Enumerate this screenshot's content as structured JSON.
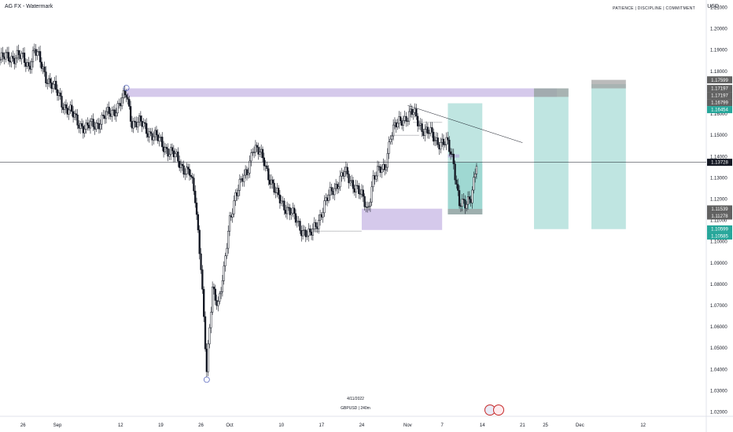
{
  "header": {
    "title": "AG FX - Watermark",
    "motto": "PATIENCE  |  DISCIPLINE  |  COMMITMENT",
    "currency": "USD"
  },
  "watermark": {
    "date": "4/11/2022",
    "symbol": "GBPUSD | 240m"
  },
  "colors": {
    "up": "#131722",
    "down": "#131722",
    "zone": "#b39ddb",
    "target": "#80cbc4",
    "grey": "#9e9e9e",
    "teal_label": "#26a69a",
    "price_line": "#131722"
  },
  "chart_data": {
    "type": "candlestick",
    "title": "",
    "xlabel": "",
    "ylabel": "",
    "ylim": [
      1.018,
      1.2135
    ],
    "y_ticks": [
      1.21,
      1.2,
      1.19,
      1.18,
      1.17,
      1.16,
      1.15,
      1.14,
      1.13,
      1.12,
      1.11,
      1.1,
      1.09,
      1.08,
      1.07,
      1.06,
      1.05,
      1.04,
      1.03,
      1.02
    ],
    "y_tick_labels": [
      "1.21000",
      "1.20000",
      "1.19000",
      "1.18000",
      "1.17000",
      "1.16000",
      "1.15000",
      "1.14000",
      "1.13000",
      "1.12000",
      "1.11000",
      "1.10000",
      "1.09000",
      "1.08000",
      "1.07000",
      "1.06000",
      "1.05000",
      "1.04000",
      "1.03000",
      "1.02000"
    ],
    "x_ticks": [
      "26",
      "Sep",
      "12",
      "19",
      "26",
      "Oct",
      "10",
      "17",
      "24",
      "Nov",
      "7",
      "14",
      "21",
      "25",
      "Dec",
      "12"
    ],
    "x_tick_days": [
      -6,
      0,
      11,
      18,
      25,
      30,
      39,
      46,
      53,
      61,
      67,
      74,
      81,
      85,
      91,
      102
    ],
    "x_range_days": [
      -10,
      113
    ],
    "price_keypoints": [
      {
        "d": -10,
        "p": 1.1855
      },
      {
        "d": -7,
        "p": 1.1875
      },
      {
        "d": -5,
        "p": 1.183
      },
      {
        "d": -4,
        "p": 1.19
      },
      {
        "d": -2,
        "p": 1.178
      },
      {
        "d": 1,
        "p": 1.165
      },
      {
        "d": 3,
        "p": 1.158
      },
      {
        "d": 5,
        "p": 1.153
      },
      {
        "d": 7,
        "p": 1.156
      },
      {
        "d": 9,
        "p": 1.16
      },
      {
        "d": 11,
        "p": 1.165
      },
      {
        "d": 12,
        "p": 1.169
      },
      {
        "d": 13,
        "p": 1.1565
      },
      {
        "d": 15,
        "p": 1.1545
      },
      {
        "d": 17,
        "p": 1.149
      },
      {
        "d": 19,
        "p": 1.144
      },
      {
        "d": 21,
        "p": 1.138
      },
      {
        "d": 23,
        "p": 1.132
      },
      {
        "d": 24,
        "p": 1.12
      },
      {
        "d": 25,
        "p": 1.09
      },
      {
        "d": 26,
        "p": 1.038
      },
      {
        "d": 27,
        "p": 1.078
      },
      {
        "d": 28,
        "p": 1.072
      },
      {
        "d": 29,
        "p": 1.085
      },
      {
        "d": 30,
        "p": 1.11
      },
      {
        "d": 31,
        "p": 1.123
      },
      {
        "d": 33,
        "p": 1.132
      },
      {
        "d": 34,
        "p": 1.145
      },
      {
        "d": 36,
        "p": 1.138
      },
      {
        "d": 38,
        "p": 1.122
      },
      {
        "d": 40,
        "p": 1.116
      },
      {
        "d": 42,
        "p": 1.108
      },
      {
        "d": 44,
        "p": 1.102
      },
      {
        "d": 46,
        "p": 1.114
      },
      {
        "d": 48,
        "p": 1.125
      },
      {
        "d": 50,
        "p": 1.132
      },
      {
        "d": 52,
        "p": 1.126
      },
      {
        "d": 54,
        "p": 1.115
      },
      {
        "d": 55,
        "p": 1.13
      },
      {
        "d": 57,
        "p": 1.135
      },
      {
        "d": 58,
        "p": 1.15
      },
      {
        "d": 60,
        "p": 1.158
      },
      {
        "d": 62,
        "p": 1.16
      },
      {
        "d": 64,
        "p": 1.152
      },
      {
        "d": 66,
        "p": 1.148
      },
      {
        "d": 68,
        "p": 1.145
      },
      {
        "d": 69,
        "p": 1.138
      },
      {
        "d": 70,
        "p": 1.118
      },
      {
        "d": 71,
        "p": 1.116
      },
      {
        "d": 72,
        "p": 1.122
      },
      {
        "d": 73,
        "p": 1.1373
      }
    ],
    "swing_markers": [
      {
        "d": 12,
        "p": 1.1722
      },
      {
        "d": 26,
        "p": 1.0352
      }
    ],
    "zones": [
      {
        "d0": 12,
        "d1": 87,
        "p0": 1.168,
        "p1": 1.172,
        "kind": "zone"
      },
      {
        "d0": 53,
        "d1": 67,
        "p0": 1.1055,
        "p1": 1.1155,
        "kind": "zone"
      },
      {
        "d0": 68,
        "d1": 74,
        "p0": 1.1128,
        "p1": 1.165,
        "kind": "target"
      },
      {
        "d0": 68,
        "d1": 74,
        "p0": 1.1128,
        "p1": 1.1373,
        "kind": "target"
      },
      {
        "d0": 68,
        "d1": 74,
        "p0": 1.1128,
        "p1": 1.1154,
        "kind": "grey"
      },
      {
        "d0": 68,
        "d1": 70,
        "p0": 1.1395,
        "p1": 1.141,
        "kind": "zone"
      },
      {
        "d0": 83,
        "d1": 89,
        "p0": 1.1059,
        "p1": 1.172,
        "kind": "target"
      },
      {
        "d0": 83,
        "d1": 89,
        "p0": 1.168,
        "p1": 1.172,
        "kind": "grey"
      },
      {
        "d0": 93,
        "d1": 99,
        "p0": 1.1059,
        "p1": 1.174,
        "kind": "target"
      },
      {
        "d0": 93,
        "d1": 99,
        "p0": 1.172,
        "p1": 1.176,
        "kind": "grey"
      }
    ],
    "trendline": {
      "d0": 61,
      "p0": 1.164,
      "d1": 81,
      "p1": 1.1465
    },
    "dotted_lines": [
      {
        "d0": 45,
        "d1": 53,
        "p": 1.105
      },
      {
        "d0": 58,
        "d1": 63,
        "p": 1.15
      },
      {
        "d0": 62,
        "d1": 67,
        "p": 1.156
      }
    ],
    "last_price": 1.13728,
    "price_labels": [
      {
        "p": 1.17599,
        "text": "1.17599",
        "kind": "grey"
      },
      {
        "p": 1.17197,
        "text": "1.17197",
        "kind": "grey"
      },
      {
        "p": 1.17197,
        "text": "1.17197",
        "kind": "grey"
      },
      {
        "p": 1.16799,
        "text": "1.16799",
        "kind": "grey"
      },
      {
        "p": 1.16454,
        "text": "1.16454",
        "kind": "teal"
      },
      {
        "p": 1.13728,
        "text": "1.13728",
        "kind": "dark"
      },
      {
        "p": 1.11539,
        "text": "1.11539",
        "kind": "grey"
      },
      {
        "p": 1.11278,
        "text": "1.11278",
        "kind": "grey"
      },
      {
        "p": 1.10599,
        "text": "1.10599",
        "kind": "teal"
      },
      {
        "p": 1.10585,
        "text": "1.10585",
        "kind": "teal"
      }
    ]
  }
}
